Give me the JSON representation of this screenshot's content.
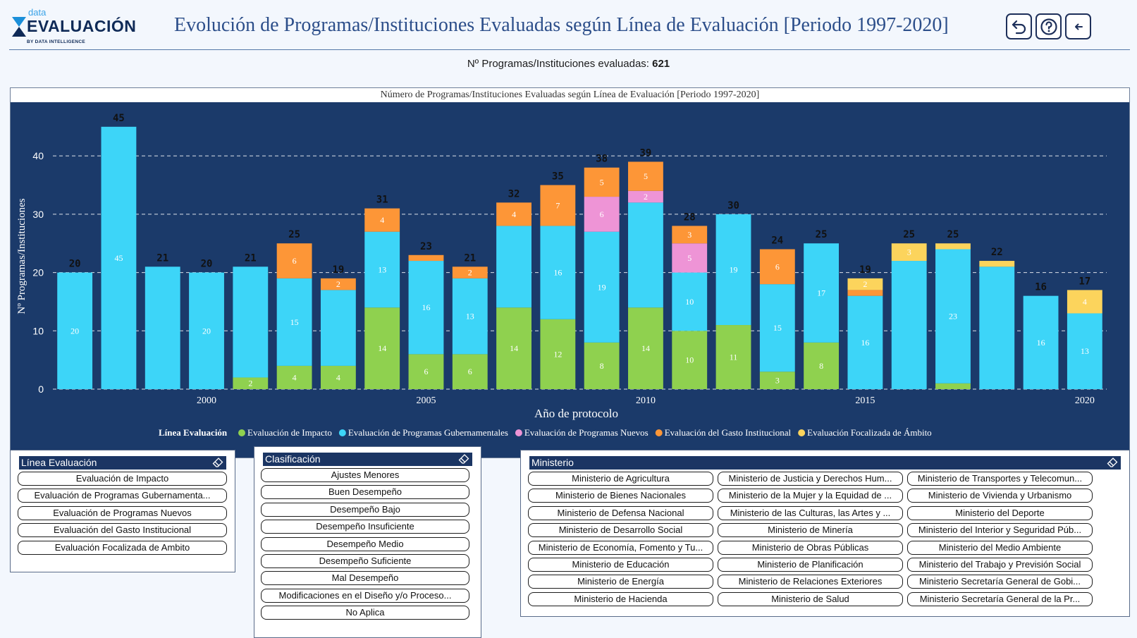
{
  "header": {
    "logo_small": "data",
    "logo_big": "EVALUACIÓN",
    "logo_tiny": "BY DATA INTELLIGENCE",
    "title": "Evolución de Programas/Instituciones Evaluadas según Línea de Evaluación [Periodo 1997-2020]",
    "buttons": [
      "undo-icon",
      "help-icon",
      "back-arrow-icon"
    ]
  },
  "summary": {
    "label": "Nº Programas/Instituciones evaluadas:",
    "value": "621"
  },
  "chart_data": {
    "type": "bar",
    "stacked": true,
    "title": "Número de Programas/Instituciones Evaluadas según Línea de Evaluación [Periodo 1997-2020]",
    "xlabel": "Año de protocolo",
    "ylabel": "Nº Programas/Instituciones",
    "legend_title": "Línea Evaluación",
    "legend_position": "bottom",
    "grid": true,
    "ylim": [
      0,
      48
    ],
    "yticks": [
      0,
      10,
      20,
      30,
      40
    ],
    "xticks": [
      2000,
      2005,
      2010,
      2015,
      2020
    ],
    "categories": [
      1997,
      1998,
      1999,
      2000,
      2001,
      2002,
      2003,
      2004,
      2005,
      2006,
      2007,
      2008,
      2009,
      2010,
      2011,
      2012,
      2013,
      2014,
      2015,
      2016,
      2017,
      2018,
      2019,
      2020
    ],
    "totals": [
      20,
      45,
      21,
      20,
      21,
      25,
      19,
      31,
      23,
      21,
      32,
      35,
      38,
      39,
      28,
      30,
      24,
      25,
      19,
      25,
      25,
      22,
      16,
      17
    ],
    "series": [
      {
        "name": "Evaluación de Impacto",
        "color": "#8fd14f",
        "values": [
          0,
          0,
          0,
          0,
          2,
          4,
          4,
          14,
          6,
          6,
          14,
          12,
          8,
          14,
          10,
          11,
          3,
          8,
          0,
          0,
          1,
          0,
          0,
          0
        ]
      },
      {
        "name": "Evaluación de Programas Gubernamentales",
        "color": "#3dd5f8",
        "values": [
          20,
          45,
          21,
          20,
          19,
          15,
          13,
          13,
          16,
          13,
          14,
          16,
          19,
          18,
          10,
          19,
          15,
          17,
          16,
          22,
          23,
          21,
          16,
          13
        ]
      },
      {
        "name": "Evaluación de Programas Nuevos",
        "color": "#ee94d6",
        "values": [
          0,
          0,
          0,
          0,
          0,
          0,
          0,
          0,
          0,
          0,
          0,
          0,
          6,
          2,
          5,
          0,
          0,
          0,
          0,
          0,
          0,
          0,
          0,
          0
        ]
      },
      {
        "name": "Evaluación del Gasto Institucional",
        "color": "#fd9637",
        "values": [
          0,
          0,
          0,
          0,
          0,
          6,
          2,
          4,
          1,
          2,
          4,
          7,
          5,
          5,
          3,
          0,
          6,
          0,
          1,
          0,
          0,
          0,
          0,
          0
        ]
      },
      {
        "name": "Evaluación Focalizada de Ámbito",
        "color": "#fcd45c",
        "values": [
          0,
          0,
          0,
          0,
          0,
          0,
          0,
          0,
          0,
          0,
          0,
          0,
          0,
          0,
          0,
          0,
          0,
          0,
          2,
          3,
          1,
          1,
          0,
          4
        ]
      }
    ],
    "segment_labels": [
      [
        null,
        null,
        null,
        null,
        "2",
        "4",
        "4",
        "14",
        "6",
        "6",
        "14",
        "12",
        "8",
        "14",
        "10",
        "11",
        "3",
        "8",
        null,
        null,
        null,
        null,
        null,
        null
      ],
      [
        "20",
        "45",
        null,
        "20",
        null,
        "15",
        null,
        "13",
        "16",
        "13",
        null,
        "16",
        "19",
        null,
        "10",
        "19",
        "15",
        "17",
        "16",
        null,
        "23",
        null,
        "16",
        "13"
      ],
      [
        null,
        null,
        null,
        null,
        null,
        null,
        null,
        null,
        null,
        null,
        null,
        null,
        "6",
        "2",
        "5",
        null,
        null,
        null,
        null,
        null,
        null,
        null,
        null,
        null
      ],
      [
        null,
        null,
        null,
        null,
        null,
        "6",
        "2",
        "4",
        null,
        "2",
        "4",
        "7",
        "5",
        "5",
        "3",
        null,
        "6",
        null,
        null,
        null,
        null,
        null,
        null,
        null
      ],
      [
        null,
        null,
        null,
        null,
        null,
        null,
        null,
        null,
        null,
        null,
        null,
        null,
        null,
        null,
        null,
        null,
        null,
        null,
        "2",
        "3",
        null,
        null,
        null,
        "4"
      ]
    ]
  },
  "slicers": {
    "linea": {
      "title": "Línea Evaluación",
      "items": [
        "Evaluación de Impacto",
        "Evaluación de Programas Gubernamenta...",
        "Evaluación de Programas Nuevos",
        "Evaluación del Gasto Institucional",
        "Evaluación Focalizada de Ambito"
      ]
    },
    "clasificacion": {
      "title": "Clasificación",
      "items": [
        "Ajustes Menores",
        "Buen Desempeño",
        "Desempeño Bajo",
        "Desempeño Insuficiente",
        "Desempeño Medio",
        "Desempeño Suficiente",
        "Mal Desempeño",
        "Modificaciones en el Diseño y/o Proceso...",
        "No Aplica"
      ]
    },
    "ministerio": {
      "title": "Ministerio",
      "columns": [
        [
          "Ministerio de Agricultura",
          "Ministerio de Bienes Nacionales",
          "Ministerio de Defensa Nacional",
          "Ministerio de Desarrollo Social",
          "Ministerio de Economía, Fomento y Tu...",
          "Ministerio de Educación",
          "Ministerio de Energía",
          "Ministerio de Hacienda"
        ],
        [
          "Ministerio de Justicia y Derechos Hum...",
          "Ministerio de la Mujer y la Equidad de ...",
          "Ministerio de las Culturas, las Artes y ...",
          "Ministerio de Minería",
          "Ministerio de Obras Públicas",
          "Ministerio de Planificación",
          "Ministerio de Relaciones Exteriores",
          "Ministerio de Salud"
        ],
        [
          "Ministerio de Transportes y Telecomun...",
          "Ministerio de Vivienda y Urbanismo",
          "Ministerio del Deporte",
          "Ministerio del Interior y Seguridad Púb...",
          "Ministerio del Medio Ambiente",
          "Ministerio del Trabajo y Previsión Social",
          "Ministerio Secretaría General de Gobi...",
          "Ministerio Secretaría General de la Pr..."
        ]
      ]
    }
  }
}
